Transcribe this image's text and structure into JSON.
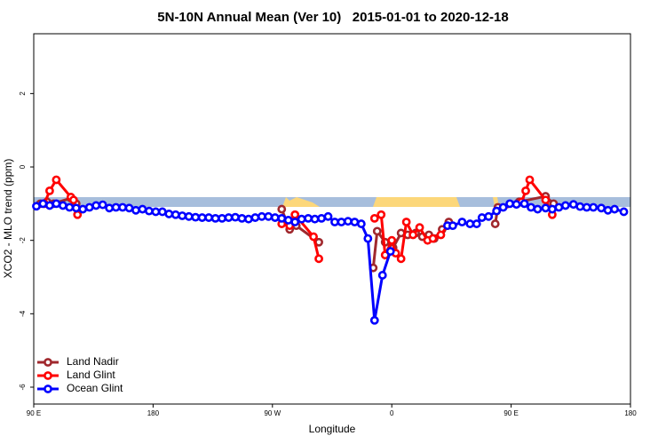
{
  "chart_data": {
    "type": "line",
    "title": "5N-10N Annual Mean (Ver 10)   2015-01-01 to 2020-12-18",
    "x_label": "Longitude",
    "y_label": "XCO2 - MLO trend (ppm)",
    "xlim": [
      90,
      540
    ],
    "ylim": [
      -6.46,
      3.63
    ],
    "xticks": [
      {
        "value": 90,
        "label": "90 E"
      },
      180,
      {
        "value": 270,
        "label": "90 W"
      },
      {
        "value": 360,
        "label": "0"
      },
      {
        "value": 450,
        "label": "90 E"
      },
      {
        "value": 540,
        "label": "180"
      }
    ],
    "yticks": [
      2,
      0,
      -2,
      -4,
      -6
    ],
    "legend": "bottom-left",
    "series": [
      {
        "name": "Land Nadir",
        "color": "#a0282d",
        "x": [
          95,
          100,
          105,
          118,
          122,
          200,
          277,
          283,
          288,
          305,
          320,
          346,
          349,
          355,
          361,
          367,
          372,
          378,
          383,
          388,
          392,
          398,
          403,
          420,
          438,
          440,
          456,
          476,
          482
        ],
        "values": [
          -1.0,
          -0.95,
          -1.0,
          -0.85,
          -1.0,
          null,
          -1.15,
          -1.7,
          -1.6,
          -2.05,
          null,
          -2.75,
          -1.75,
          -2.05,
          -2.2,
          -1.8,
          -1.85,
          -1.8,
          -1.9,
          -1.85,
          -1.95,
          -1.7,
          -1.5,
          null,
          -1.55,
          -1.1,
          -0.95,
          -0.8,
          -1.0
        ]
      },
      {
        "name": "Land Glint",
        "color": "#ff0000",
        "x": [
          98,
          102,
          107,
          118,
          120,
          123,
          200,
          277,
          283,
          287,
          301,
          305,
          320,
          347,
          352,
          355,
          360,
          363,
          367,
          371,
          376,
          381,
          387,
          391,
          397,
          402,
          420,
          439,
          458,
          461,
          464,
          476,
          481
        ],
        "values": [
          -1.0,
          -0.65,
          -0.35,
          -0.82,
          -0.9,
          -1.3,
          null,
          -1.55,
          -1.6,
          -1.3,
          -1.9,
          -2.5,
          null,
          -1.4,
          -1.3,
          -2.4,
          -2.0,
          -2.35,
          -2.5,
          -1.5,
          -1.85,
          -1.65,
          -2.0,
          -1.95,
          -1.85,
          -1.6,
          null,
          -1.2,
          -0.95,
          -0.65,
          -0.35,
          -0.9,
          -1.3
        ]
      },
      {
        "name": "Ocean Glint",
        "color": "#0000ff",
        "x": [
          92,
          97,
          102,
          107,
          112,
          117,
          122,
          127,
          132,
          137,
          142,
          147,
          152,
          157,
          162,
          167,
          172,
          177,
          182,
          187,
          192,
          197,
          202,
          207,
          212,
          217,
          222,
          227,
          232,
          237,
          242,
          247,
          252,
          257,
          262,
          267,
          272,
          277,
          282,
          287,
          292,
          297,
          302,
          307,
          312,
          317,
          322,
          327,
          332,
          337,
          342,
          347,
          353,
          359,
          380,
          402,
          406,
          413,
          419,
          424,
          428,
          433,
          439,
          444,
          449,
          454,
          460,
          465,
          470,
          476,
          481,
          486,
          491,
          497,
          502,
          507,
          512,
          518,
          523,
          528,
          535
        ],
        "values": [
          -1.07,
          -1.0,
          -1.05,
          -1.0,
          -1.05,
          -1.1,
          -1.12,
          -1.15,
          -1.1,
          -1.05,
          -1.03,
          -1.12,
          -1.1,
          -1.1,
          -1.12,
          -1.18,
          -1.15,
          -1.2,
          -1.22,
          -1.22,
          -1.28,
          -1.3,
          -1.33,
          -1.35,
          -1.37,
          -1.38,
          -1.38,
          -1.4,
          -1.4,
          -1.38,
          -1.37,
          -1.4,
          -1.42,
          -1.38,
          -1.35,
          -1.35,
          -1.38,
          -1.4,
          -1.45,
          -1.5,
          -1.42,
          -1.4,
          -1.42,
          -1.4,
          -1.35,
          -1.5,
          -1.5,
          -1.48,
          -1.5,
          -1.55,
          -1.95,
          -4.18,
          -2.95,
          -2.3,
          null,
          -1.6,
          -1.6,
          -1.5,
          -1.55,
          -1.55,
          -1.38,
          -1.35,
          -1.2,
          -1.1,
          -1.0,
          -1.02,
          -1.0,
          -1.1,
          -1.15,
          -1.12,
          -1.15,
          -1.1,
          -1.05,
          -1.02,
          -1.08,
          -1.1,
          -1.1,
          -1.12,
          -1.18,
          -1.15,
          -1.22
        ]
      }
    ]
  }
}
